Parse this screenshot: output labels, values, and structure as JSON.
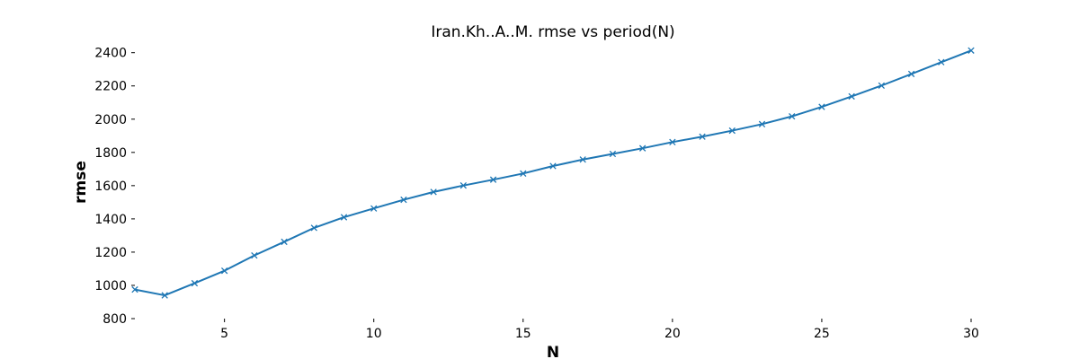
{
  "chart_data": {
    "type": "line",
    "title": "Iran.Kh..A..M. rmse vs period(N)",
    "xlabel": "N",
    "ylabel": "rmse",
    "xlim": [
      2,
      30
    ],
    "ylim": [
      800,
      2420
    ],
    "xticks": [
      5,
      10,
      15,
      20,
      25,
      30
    ],
    "yticks": [
      800,
      1000,
      1200,
      1400,
      1600,
      1800,
      2000,
      2200,
      2400
    ],
    "grid": false,
    "marker": "x",
    "color": "#1f77b4",
    "series": [
      {
        "x": [
          2,
          3,
          4,
          5,
          6,
          7,
          8,
          9,
          10,
          11,
          12,
          13,
          14,
          15,
          16,
          17,
          18,
          19,
          20,
          21,
          22,
          23,
          24,
          25,
          26,
          27,
          28,
          29,
          30
        ],
        "values": [
          975,
          940,
          1013,
          1088,
          1180,
          1262,
          1346,
          1410,
          1463,
          1515,
          1562,
          1601,
          1636,
          1673,
          1718,
          1757,
          1791,
          1825,
          1862,
          1895,
          1931,
          1970,
          2017,
          2074,
          2137,
          2202,
          2272,
          2343,
          2413
        ]
      }
    ]
  }
}
